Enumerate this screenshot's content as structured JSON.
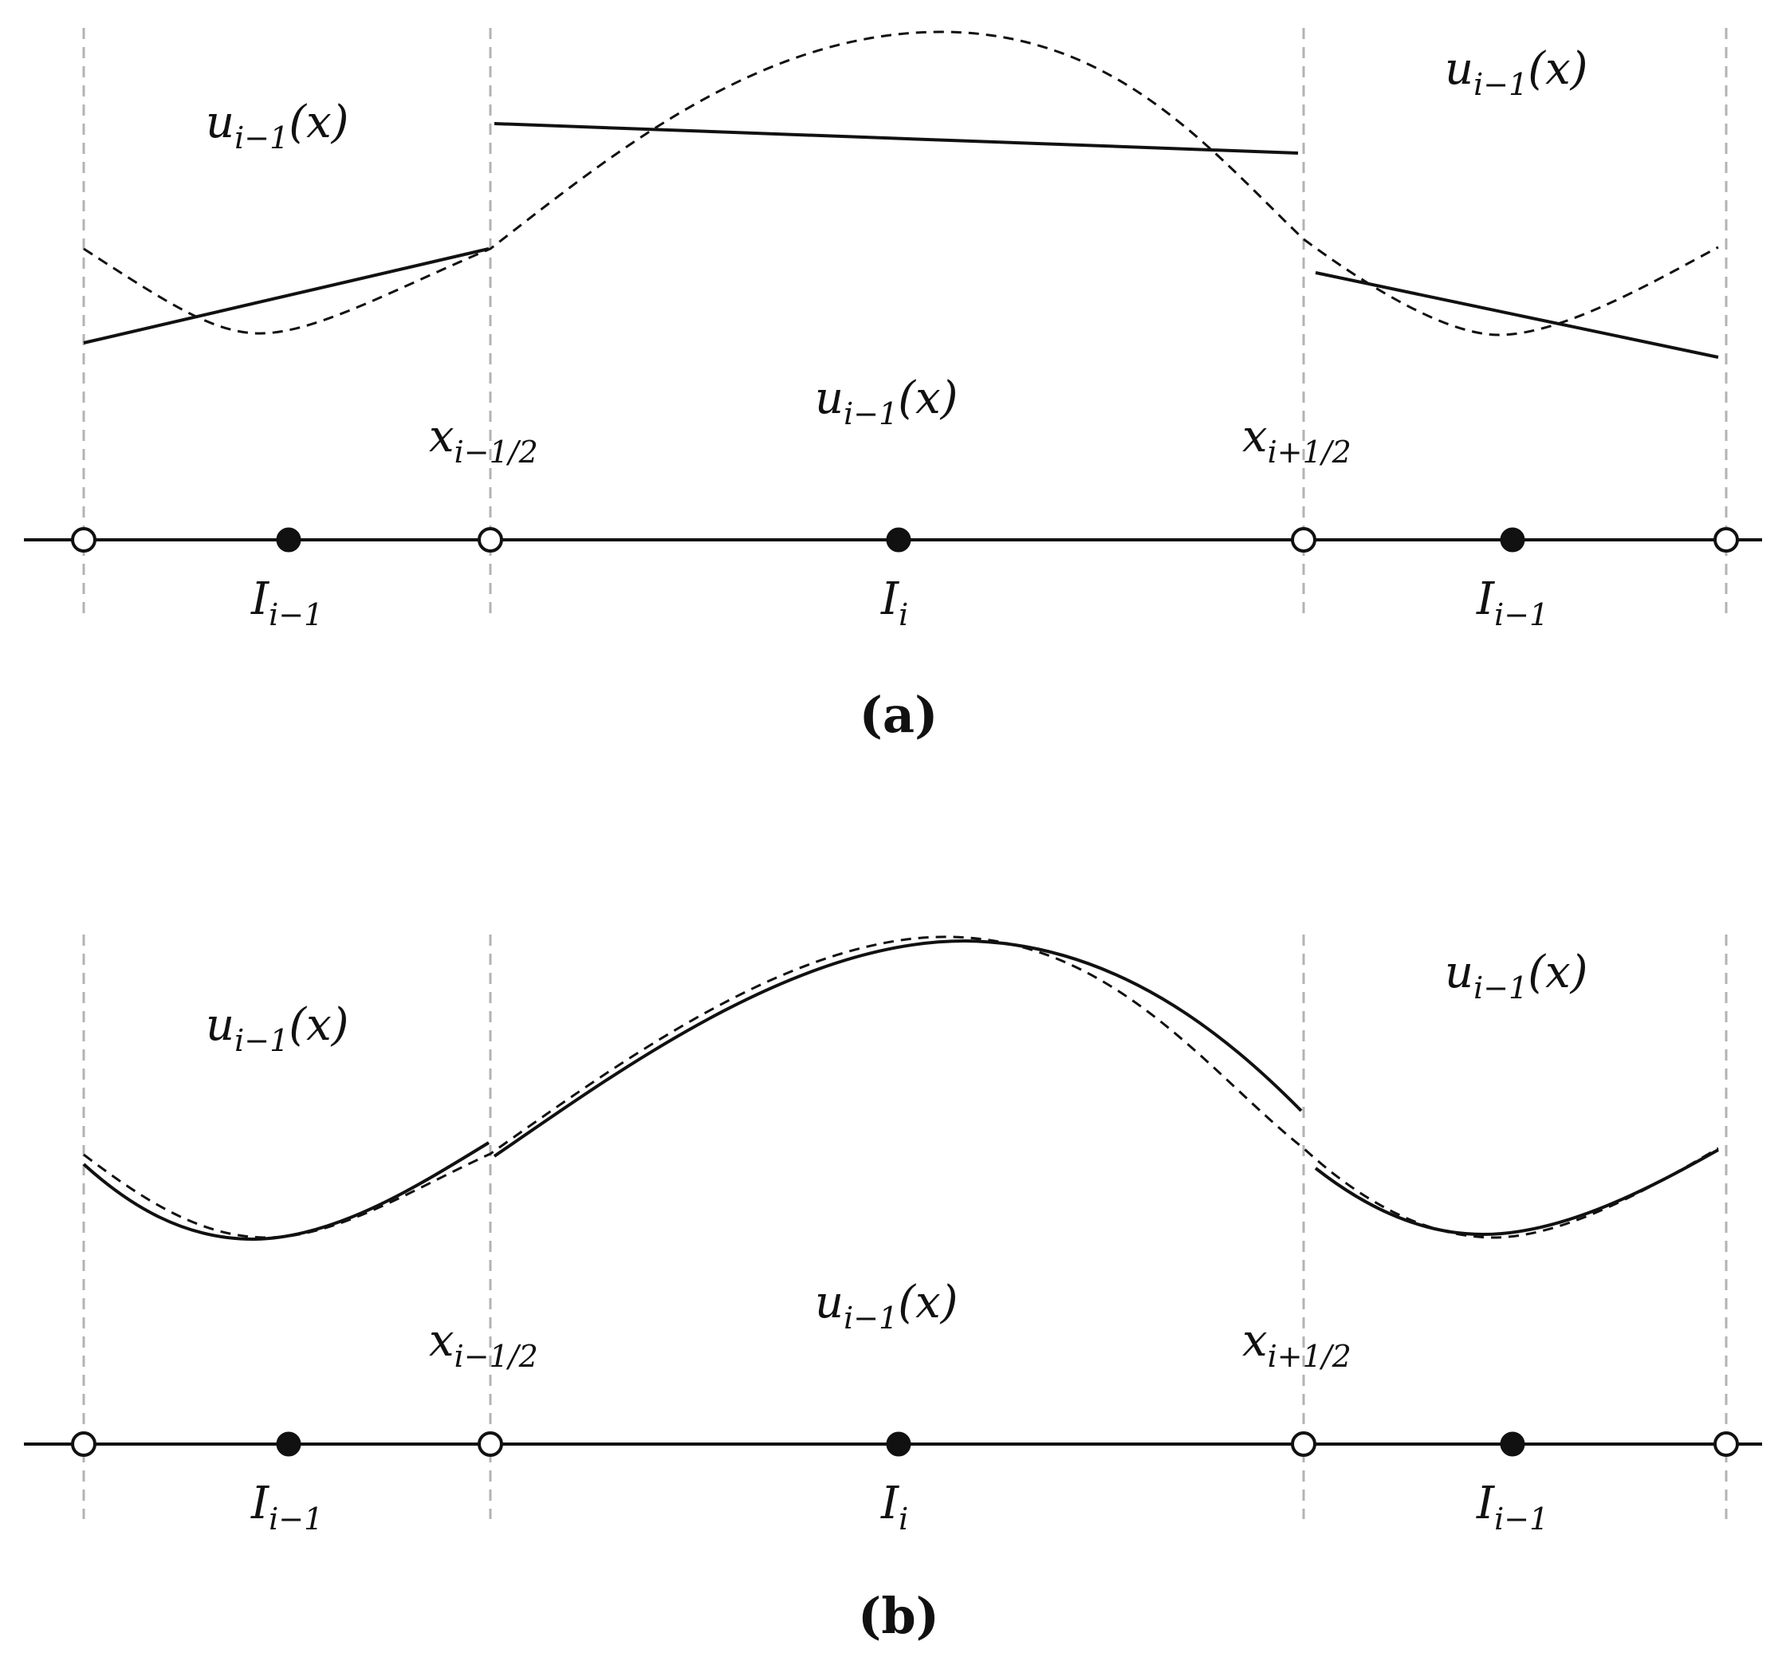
{
  "panels": [
    {
      "id": "a",
      "label": "(a)",
      "labels": {
        "u_left": "u",
        "u_left_sub": "i−1",
        "u_left_arg": "(x)",
        "u_right": "u",
        "u_right_sub": "i−1",
        "u_right_arg": "(x)",
        "u_center": "u",
        "u_center_sub": "i−1",
        "u_center_arg": "(x)",
        "x_left": "x",
        "x_left_sub": "i−1/2",
        "x_right": "x",
        "x_right_sub": "i+1/2",
        "cell_left": "I",
        "cell_left_sub": "i−1",
        "cell_center": "I",
        "cell_center_sub": "i",
        "cell_right": "I",
        "cell_right_sub": "i−1"
      }
    },
    {
      "id": "b",
      "label": "(b)",
      "labels": {
        "u_left": "u",
        "u_left_sub": "i−1",
        "u_left_arg": "(x)",
        "u_right": "u",
        "u_right_sub": "i−1",
        "u_right_arg": "(x)",
        "u_center": "u",
        "u_center_sub": "i−1",
        "u_center_arg": "(x)",
        "x_left": "x",
        "x_left_sub": "i−1/2",
        "x_right": "x",
        "x_right_sub": "i+1/2",
        "cell_left": "I",
        "cell_left_sub": "i−1",
        "cell_center": "I",
        "cell_center_sub": "i",
        "cell_right": "I",
        "cell_right_sub": "i−1"
      }
    }
  ],
  "colors": {
    "line": "#111111",
    "guide": "#b3b3b3",
    "open_node_fill": "#ffffff",
    "center_node_fill": "#111111"
  }
}
